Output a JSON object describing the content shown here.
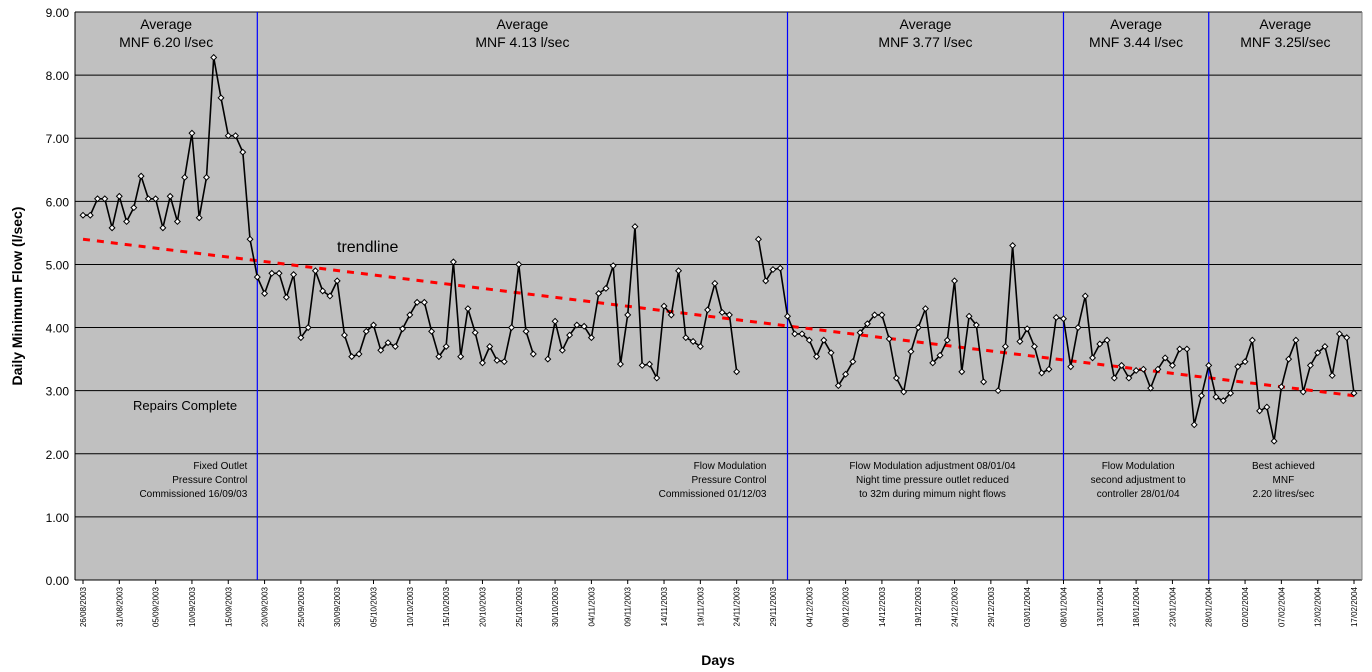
{
  "chart_data": {
    "type": "line",
    "xlabel": "Days",
    "ylabel": "Daily Minimum Flow (l/sec)",
    "ylim": [
      0,
      9
    ],
    "yticks": [
      "0.00",
      "1.00",
      "2.00",
      "3.00",
      "4.00",
      "5.00",
      "6.00",
      "7.00",
      "8.00",
      "9.00"
    ],
    "grid": true,
    "legend": "none",
    "colors": {
      "plot_bg": "#c0c0c0",
      "series": "#000000",
      "trend": "#ff0000",
      "markers": "#0000ff"
    },
    "x_start": "26/08/2003",
    "x_end": "17/02/2004",
    "xtick_labels": [
      "26/08/2003",
      "31/08/2003",
      "05/09/2003",
      "10/09/2003",
      "15/09/2003",
      "20/09/2003",
      "25/09/2003",
      "30/09/2003",
      "05/10/2003",
      "10/10/2003",
      "15/10/2003",
      "20/10/2003",
      "25/10/2003",
      "30/10/2003",
      "04/11/2003",
      "09/11/2003",
      "14/11/2003",
      "19/11/2003",
      "24/11/2003",
      "29/11/2003",
      "04/12/2003",
      "09/12/2003",
      "14/12/2003",
      "19/12/2003",
      "24/12/2003",
      "29/12/2003",
      "03/01/2004",
      "08/01/2004",
      "13/01/2004",
      "18/01/2004",
      "23/01/2004",
      "28/01/2004",
      "02/02/2004",
      "07/02/2004",
      "12/02/2004",
      "17/02/2004"
    ],
    "series": [
      {
        "values": [
          5.78,
          5.78,
          6.04,
          6.04,
          5.58,
          6.08,
          5.68,
          5.9,
          6.4,
          6.04,
          6.04,
          5.58,
          6.08,
          5.68,
          6.38,
          7.08,
          5.74,
          6.38,
          8.28,
          7.64,
          7.04,
          7.04,
          6.78,
          5.4,
          4.8,
          4.54,
          4.86,
          4.86,
          4.48,
          4.84,
          3.84,
          4.0,
          4.9,
          4.58,
          4.5,
          4.74,
          3.88,
          3.54,
          3.58,
          3.94,
          4.04,
          3.64,
          3.76,
          3.7,
          3.98,
          4.2,
          4.4,
          4.4,
          3.94,
          3.54,
          3.7,
          5.04,
          3.54,
          4.3,
          3.92,
          3.44,
          3.7,
          3.48,
          3.46,
          4.0,
          5.0,
          3.94,
          3.58,
          null,
          3.5,
          4.1,
          3.64,
          3.88,
          4.04,
          4.02,
          3.84,
          4.54,
          4.62,
          4.98,
          3.42,
          4.2,
          5.6,
          3.4,
          3.42,
          3.2,
          4.34,
          4.2,
          4.9,
          3.84,
          3.78,
          3.7,
          4.28,
          4.7,
          4.24,
          4.2,
          3.3,
          null,
          null,
          5.4,
          4.74,
          4.92,
          4.94,
          4.18,
          3.9,
          3.9,
          3.8,
          3.54,
          3.8,
          3.6,
          3.08,
          3.26,
          3.46,
          3.92,
          4.06,
          4.2,
          4.2,
          3.82,
          3.2,
          2.98,
          3.62,
          4.0,
          4.3,
          3.44,
          3.56,
          3.8,
          4.74,
          3.3,
          4.18,
          4.04,
          3.14,
          null,
          3.0,
          3.7,
          5.3,
          3.78,
          3.98,
          3.7,
          3.28,
          3.34,
          4.16,
          4.14,
          3.38,
          4.0,
          4.5,
          3.52,
          3.74,
          3.8,
          3.2,
          3.4,
          3.2,
          3.32,
          3.34,
          3.04,
          3.34,
          3.52,
          3.4,
          3.66,
          3.66,
          2.46,
          2.92,
          3.4,
          2.9,
          2.84,
          2.96,
          3.38,
          3.46,
          3.8,
          2.68,
          2.74,
          2.2,
          3.06,
          3.5,
          3.8,
          2.98,
          3.4,
          3.6,
          3.7,
          3.24,
          3.9,
          3.84,
          2.96
        ]
      }
    ],
    "trendline": {
      "label": "trendline",
      "start": 5.4,
      "end": 2.92
    },
    "phase_dividers": [
      "19/09/2003",
      "01/12/2003",
      "08/01/2004",
      "28/01/2004"
    ],
    "period_averages": [
      {
        "line1": "Average",
        "line2": "MNF 6.20 l/sec"
      },
      {
        "line1": "Average",
        "line2": "MNF 4.13 l/sec"
      },
      {
        "line1": "Average",
        "line2": "MNF 3.77 l/sec"
      },
      {
        "line1": "Average",
        "line2": "MNF 3.44 l/sec"
      },
      {
        "line1": "Average",
        "line2": "MNF 3.25l/sec"
      }
    ],
    "annotations": {
      "repairs": "Repairs Complete",
      "phases": [
        {
          "lines": [
            "Fixed Outlet",
            "Pressure Control",
            "Commissioned 16/09/03"
          ]
        },
        {
          "lines": [
            "Flow Modulation",
            "Pressure Control",
            "Commissioned 01/12/03"
          ]
        },
        {
          "lines": [
            "Flow Modulation adjustment 08/01/04",
            "Night time pressure outlet reduced",
            "to 32m during mimum night flows"
          ]
        },
        {
          "lines": [
            "Flow Modulation",
            "second adjustment to",
            "controller 28/01/04"
          ]
        },
        {
          "lines": [
            "Best achieved",
            "MNF",
            "2.20 litres/sec"
          ]
        }
      ]
    }
  }
}
